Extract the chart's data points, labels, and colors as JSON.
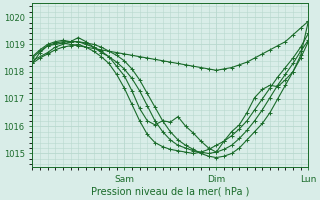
{
  "xlabel": "Pression niveau de la mer( hPa )",
  "ylim": [
    1014.5,
    1020.5
  ],
  "xlim": [
    0,
    72
  ],
  "yticks": [
    1015,
    1016,
    1017,
    1018,
    1019,
    1020
  ],
  "xtick_positions": [
    24,
    48,
    72
  ],
  "xtick_labels": [
    "Sam",
    "Dim",
    "Lun"
  ],
  "bg_color": "#d9ede8",
  "grid_color": "#b8d8ce",
  "line_color": "#1a6b2a",
  "markersize": 3,
  "linewidth": 0.8,
  "lines": [
    [
      0,
      1018.3,
      2,
      1018.7,
      4,
      1018.95,
      6,
      1019.0,
      8,
      1019.05,
      10,
      1019.0,
      12,
      1018.95,
      14,
      1018.9,
      16,
      1018.85,
      18,
      1018.8,
      20,
      1018.75,
      22,
      1018.7,
      24,
      1018.65,
      26,
      1018.6,
      28,
      1018.55,
      30,
      1018.5,
      32,
      1018.45,
      34,
      1018.4,
      36,
      1018.35,
      38,
      1018.3,
      40,
      1018.25,
      42,
      1018.2,
      44,
      1018.15,
      46,
      1018.1,
      48,
      1018.05,
      50,
      1018.1,
      52,
      1018.15,
      54,
      1018.25,
      56,
      1018.35,
      58,
      1018.5,
      60,
      1018.65,
      62,
      1018.8,
      64,
      1018.95,
      66,
      1019.1,
      68,
      1019.35,
      70,
      1019.6,
      72,
      1019.85
    ],
    [
      0,
      1018.5,
      2,
      1018.75,
      4,
      1018.95,
      6,
      1019.05,
      8,
      1019.1,
      10,
      1019.1,
      12,
      1019.1,
      14,
      1019.05,
      16,
      1019.0,
      18,
      1018.9,
      20,
      1018.75,
      22,
      1018.6,
      24,
      1018.4,
      26,
      1018.1,
      28,
      1017.7,
      30,
      1017.2,
      32,
      1016.7,
      34,
      1016.2,
      36,
      1015.8,
      38,
      1015.5,
      40,
      1015.3,
      42,
      1015.15,
      44,
      1015.0,
      46,
      1014.9,
      48,
      1014.85,
      50,
      1014.9,
      52,
      1015.0,
      54,
      1015.2,
      56,
      1015.5,
      58,
      1015.8,
      60,
      1016.1,
      62,
      1016.5,
      64,
      1017.0,
      66,
      1017.5,
      68,
      1018.0,
      70,
      1018.5,
      72,
      1019.1
    ],
    [
      0,
      1018.55,
      2,
      1018.8,
      4,
      1019.0,
      6,
      1019.1,
      8,
      1019.15,
      10,
      1019.1,
      12,
      1019.1,
      14,
      1019.0,
      16,
      1018.9,
      18,
      1018.7,
      20,
      1018.55,
      22,
      1018.35,
      24,
      1018.1,
      26,
      1017.75,
      28,
      1017.3,
      30,
      1016.75,
      32,
      1016.2,
      34,
      1015.8,
      36,
      1015.5,
      38,
      1015.3,
      40,
      1015.2,
      42,
      1015.1,
      44,
      1015.05,
      46,
      1015.0,
      48,
      1015.05,
      50,
      1015.15,
      52,
      1015.3,
      54,
      1015.55,
      56,
      1015.85,
      58,
      1016.2,
      60,
      1016.6,
      62,
      1017.05,
      64,
      1017.5,
      66,
      1017.9,
      68,
      1018.3,
      70,
      1018.75,
      72,
      1019.15
    ],
    [
      0,
      1018.3,
      2,
      1018.5,
      4,
      1018.65,
      6,
      1018.8,
      8,
      1018.9,
      10,
      1018.95,
      12,
      1019.0,
      14,
      1018.9,
      16,
      1018.75,
      18,
      1018.55,
      20,
      1018.3,
      22,
      1017.9,
      24,
      1017.4,
      26,
      1016.8,
      28,
      1016.2,
      30,
      1015.7,
      32,
      1015.4,
      34,
      1015.25,
      36,
      1015.15,
      38,
      1015.1,
      40,
      1015.05,
      42,
      1015.0,
      44,
      1015.05,
      46,
      1015.15,
      48,
      1015.3,
      50,
      1015.45,
      52,
      1015.65,
      54,
      1015.9,
      56,
      1016.2,
      58,
      1016.6,
      60,
      1017.0,
      62,
      1017.4,
      64,
      1017.8,
      66,
      1018.15,
      68,
      1018.5,
      70,
      1018.9,
      72,
      1019.4
    ],
    [
      0,
      1018.4,
      4,
      1018.7,
      6,
      1018.9,
      10,
      1019.1,
      12,
      1019.25,
      14,
      1019.1,
      16,
      1018.9,
      18,
      1018.75,
      20,
      1018.55,
      22,
      1018.2,
      24,
      1017.85,
      26,
      1017.3,
      28,
      1016.65,
      30,
      1016.2,
      32,
      1016.05,
      34,
      1016.2,
      36,
      1016.15,
      38,
      1016.35,
      40,
      1016.0,
      42,
      1015.75,
      44,
      1015.45,
      46,
      1015.2,
      48,
      1015.05,
      50,
      1015.45,
      52,
      1015.8,
      54,
      1016.05,
      56,
      1016.5,
      58,
      1017.05,
      60,
      1017.35,
      62,
      1017.5,
      64,
      1017.45,
      66,
      1017.7,
      68,
      1018.0,
      70,
      1018.6,
      72,
      1019.85
    ]
  ]
}
